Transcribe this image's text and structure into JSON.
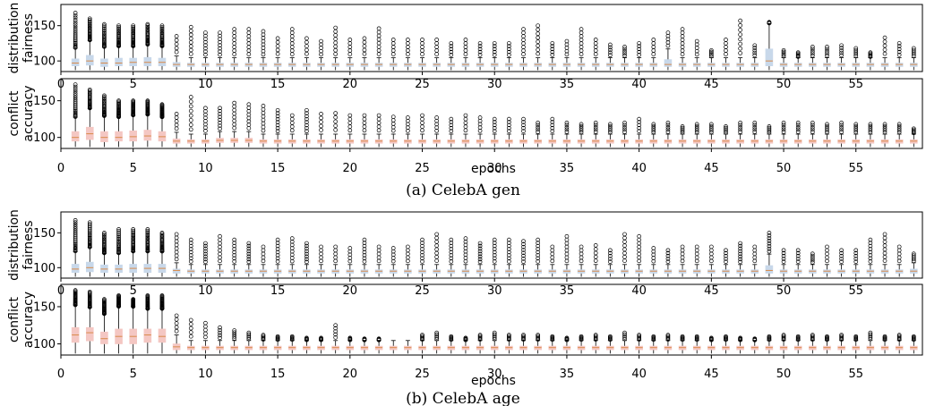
{
  "figures": [
    {
      "caption": "(a) CelebA gen",
      "xlabel": "epochs",
      "panels": [
        {
          "ylabel": [
            "distribution",
            "fairness"
          ],
          "color": "#c8d8ea"
        },
        {
          "ylabel": [
            "conflict",
            "accuracy"
          ],
          "color": "#f4c7c3"
        }
      ]
    },
    {
      "caption": "(b) CelebA age",
      "xlabel": "epochs",
      "panels": [
        {
          "ylabel": [
            "distribution",
            "fairness"
          ],
          "color": "#c8d8ea"
        },
        {
          "ylabel": [
            "conflict",
            "accuracy"
          ],
          "color": "#f4c7c3"
        }
      ]
    }
  ],
  "chart_data": [
    {
      "type": "box",
      "title": "",
      "caption": "(a) CelebA gen",
      "panel": "distribution fairness",
      "x": "epochs 1-59",
      "xticks": [
        0,
        5,
        10,
        15,
        20,
        25,
        30,
        35,
        40,
        45,
        50,
        55
      ],
      "ylim": [
        85,
        180
      ],
      "yticks": [
        100,
        150
      ],
      "box_color": "#c8d8ea",
      "medians": [
        97,
        100,
        97,
        97,
        98,
        98,
        98,
        95,
        95,
        95,
        95,
        95,
        95,
        95,
        95,
        95,
        95,
        95,
        95,
        95,
        95,
        95,
        95,
        95,
        95,
        95,
        95,
        95,
        95,
        95,
        95,
        95,
        95,
        95,
        95,
        95,
        95,
        95,
        95,
        95,
        95,
        95,
        95,
        95,
        95,
        95,
        95,
        95,
        100,
        95,
        95,
        95,
        95,
        95,
        95,
        95,
        95,
        95,
        95
      ],
      "q1": [
        93,
        94,
        92,
        93,
        93,
        93,
        93,
        92,
        92,
        92,
        92,
        92,
        92,
        92,
        92,
        92,
        92,
        92,
        92,
        92,
        92,
        92,
        92,
        92,
        92,
        92,
        92,
        92,
        92,
        92,
        92,
        92,
        92,
        92,
        92,
        92,
        92,
        92,
        92,
        92,
        92,
        92,
        92,
        92,
        92,
        92,
        92,
        92,
        93,
        92,
        92,
        92,
        92,
        92,
        92,
        92,
        92,
        92,
        92
      ],
      "q3": [
        103,
        108,
        103,
        104,
        104,
        105,
        104,
        98,
        97,
        97,
        97,
        97,
        97,
        97,
        97,
        97,
        97,
        97,
        97,
        97,
        97,
        97,
        97,
        97,
        97,
        97,
        97,
        97,
        97,
        97,
        97,
        97,
        97,
        97,
        97,
        97,
        97,
        97,
        97,
        97,
        97,
        102,
        97,
        97,
        97,
        97,
        97,
        97,
        117,
        97,
        97,
        97,
        97,
        97,
        97,
        97,
        97,
        97,
        97
      ],
      "max_outlier": [
        168,
        160,
        152,
        150,
        150,
        152,
        150,
        135,
        148,
        140,
        140,
        145,
        145,
        142,
        132,
        145,
        132,
        128,
        147,
        130,
        132,
        146,
        130,
        130,
        130,
        130,
        125,
        130,
        125,
        125,
        125,
        145,
        150,
        125,
        128,
        145,
        130,
        123,
        120,
        125,
        130,
        140,
        145,
        128,
        115,
        130,
        157,
        122,
        155,
        115,
        112,
        120,
        120,
        122,
        118,
        112,
        133,
        125,
        118
      ]
    },
    {
      "type": "box",
      "title": "",
      "caption": "(a) CelebA gen",
      "panel": "conflict accuracy",
      "x": "epochs 1-59",
      "xticks": [
        0,
        5,
        10,
        15,
        20,
        25,
        30,
        35,
        40,
        45,
        50,
        55
      ],
      "ylim": [
        85,
        180
      ],
      "yticks": [
        100,
        150
      ],
      "box_color": "#f4c7c3",
      "medians": [
        100,
        105,
        100,
        100,
        101,
        102,
        101,
        95,
        95,
        95,
        96,
        96,
        96,
        95,
        95,
        95,
        95,
        95,
        95,
        95,
        95,
        95,
        95,
        95,
        95,
        95,
        95,
        95,
        95,
        95,
        95,
        95,
        95,
        95,
        95,
        95,
        95,
        95,
        95,
        95,
        95,
        95,
        95,
        95,
        95,
        95,
        95,
        95,
        95,
        95,
        95,
        95,
        95,
        95,
        95,
        95,
        95,
        95,
        95
      ],
      "q1": [
        95,
        97,
        94,
        95,
        95,
        96,
        95,
        92,
        92,
        92,
        93,
        93,
        93,
        92,
        92,
        92,
        92,
        92,
        92,
        92,
        92,
        92,
        92,
        92,
        92,
        92,
        92,
        92,
        92,
        92,
        92,
        92,
        92,
        92,
        92,
        92,
        92,
        92,
        92,
        92,
        92,
        92,
        92,
        92,
        92,
        92,
        92,
        92,
        92,
        92,
        92,
        92,
        92,
        92,
        92,
        92,
        92,
        92,
        92
      ],
      "q3": [
        108,
        114,
        108,
        108,
        109,
        110,
        108,
        98,
        97,
        97,
        99,
        99,
        99,
        97,
        97,
        97,
        97,
        97,
        97,
        97,
        97,
        97,
        97,
        97,
        97,
        97,
        97,
        97,
        97,
        97,
        97,
        97,
        97,
        97,
        97,
        97,
        97,
        97,
        97,
        97,
        97,
        97,
        97,
        97,
        97,
        97,
        97,
        97,
        97,
        97,
        97,
        97,
        97,
        97,
        97,
        97,
        97,
        97,
        97
      ],
      "max_outlier": [
        172,
        165,
        157,
        150,
        150,
        150,
        145,
        132,
        155,
        140,
        140,
        147,
        145,
        143,
        137,
        130,
        137,
        132,
        133,
        130,
        130,
        130,
        128,
        127,
        130,
        127,
        125,
        130,
        127,
        125,
        125,
        125,
        120,
        125,
        120,
        118,
        120,
        118,
        120,
        125,
        118,
        120,
        115,
        118,
        118,
        115,
        120,
        120,
        115,
        120,
        120,
        120,
        118,
        120,
        118,
        118,
        118,
        118,
        112
      ]
    },
    {
      "type": "box",
      "title": "",
      "caption": "(b) CelebA age",
      "panel": "distribution fairness",
      "x": "epochs 1-59",
      "xticks": [
        0,
        5,
        10,
        15,
        20,
        25,
        30,
        35,
        40,
        45,
        50,
        55
      ],
      "ylim": [
        85,
        180
      ],
      "yticks": [
        100,
        150
      ],
      "box_color": "#c8d8ea",
      "medians": [
        98,
        100,
        98,
        98,
        99,
        99,
        99,
        96,
        95,
        95,
        95,
        95,
        95,
        95,
        95,
        95,
        95,
        95,
        95,
        95,
        95,
        95,
        95,
        95,
        95,
        95,
        95,
        95,
        95,
        95,
        95,
        95,
        95,
        95,
        95,
        95,
        95,
        95,
        95,
        95,
        95,
        95,
        95,
        95,
        95,
        95,
        95,
        95,
        96,
        95,
        95,
        95,
        95,
        95,
        95,
        95,
        95,
        95,
        95
      ],
      "q1": [
        93,
        94,
        93,
        93,
        93,
        93,
        93,
        92,
        92,
        92,
        92,
        92,
        92,
        92,
        92,
        92,
        92,
        92,
        92,
        92,
        92,
        92,
        92,
        92,
        92,
        92,
        92,
        92,
        92,
        92,
        92,
        92,
        92,
        92,
        92,
        92,
        92,
        92,
        92,
        92,
        92,
        92,
        92,
        92,
        92,
        92,
        92,
        92,
        92,
        92,
        92,
        92,
        92,
        92,
        92,
        92,
        92,
        92,
        92
      ],
      "q3": [
        105,
        108,
        104,
        104,
        105,
        105,
        105,
        98,
        97,
        97,
        97,
        97,
        97,
        97,
        97,
        97,
        97,
        97,
        97,
        97,
        97,
        97,
        97,
        97,
        97,
        97,
        97,
        97,
        97,
        97,
        97,
        97,
        97,
        97,
        97,
        97,
        97,
        97,
        97,
        97,
        97,
        97,
        97,
        97,
        97,
        97,
        97,
        97,
        103,
        97,
        97,
        97,
        97,
        97,
        97,
        97,
        97,
        97,
        98
      ],
      "max_outlier": [
        168,
        165,
        150,
        155,
        155,
        155,
        150,
        148,
        140,
        135,
        145,
        140,
        135,
        130,
        140,
        142,
        135,
        130,
        130,
        128,
        140,
        130,
        128,
        130,
        140,
        148,
        140,
        142,
        135,
        140,
        140,
        138,
        140,
        130,
        145,
        130,
        132,
        125,
        148,
        145,
        128,
        125,
        130,
        130,
        130,
        125,
        135,
        130,
        150,
        125,
        125,
        120,
        130,
        125,
        125,
        140,
        148,
        130,
        120
      ]
    },
    {
      "type": "box",
      "title": "",
      "caption": "(b) CelebA age",
      "panel": "conflict accuracy",
      "x": "epochs 1-59",
      "xticks": [
        0,
        5,
        10,
        15,
        20,
        25,
        30,
        35,
        40,
        45,
        50,
        55
      ],
      "ylim": [
        85,
        180
      ],
      "yticks": [
        100,
        150
      ],
      "box_color": "#f4c7c3",
      "medians": [
        112,
        115,
        107,
        110,
        110,
        112,
        110,
        96,
        95,
        95,
        95,
        95,
        95,
        95,
        95,
        95,
        95,
        95,
        95,
        95,
        95,
        95,
        95,
        95,
        95,
        95,
        95,
        95,
        95,
        95,
        95,
        95,
        95,
        95,
        95,
        95,
        95,
        95,
        95,
        95,
        95,
        95,
        95,
        95,
        95,
        95,
        95,
        95,
        95,
        95,
        95,
        95,
        95,
        95,
        95,
        95,
        95,
        95,
        95
      ],
      "q1": [
        102,
        104,
        100,
        100,
        100,
        102,
        102,
        92,
        92,
        92,
        92,
        92,
        92,
        92,
        92,
        92,
        92,
        92,
        92,
        92,
        92,
        92,
        92,
        92,
        92,
        92,
        92,
        92,
        92,
        92,
        92,
        92,
        92,
        92,
        92,
        92,
        92,
        92,
        92,
        92,
        92,
        92,
        92,
        92,
        92,
        92,
        92,
        92,
        92,
        92,
        92,
        92,
        92,
        92,
        92,
        92,
        92,
        92,
        92
      ],
      "q3": [
        122,
        122,
        116,
        120,
        120,
        120,
        120,
        100,
        97,
        97,
        97,
        97,
        97,
        97,
        97,
        97,
        97,
        97,
        97,
        97,
        97,
        97,
        97,
        97,
        97,
        97,
        97,
        97,
        97,
        97,
        97,
        97,
        97,
        97,
        97,
        97,
        97,
        97,
        97,
        97,
        97,
        97,
        97,
        97,
        97,
        97,
        97,
        97,
        97,
        97,
        97,
        97,
        97,
        97,
        97,
        97,
        97,
        97,
        97
      ],
      "max_outlier": [
        172,
        170,
        160,
        165,
        160,
        165,
        165,
        138,
        132,
        128,
        122,
        118,
        115,
        112,
        110,
        110,
        108,
        108,
        125,
        108,
        107,
        107,
        105,
        105,
        112,
        115,
        110,
        108,
        112,
        115,
        112,
        112,
        112,
        110,
        108,
        110,
        112,
        110,
        115,
        112,
        110,
        112,
        110,
        110,
        108,
        110,
        108,
        107,
        110,
        112,
        110,
        112,
        110,
        112,
        110,
        115,
        110,
        112,
        110
      ]
    }
  ]
}
